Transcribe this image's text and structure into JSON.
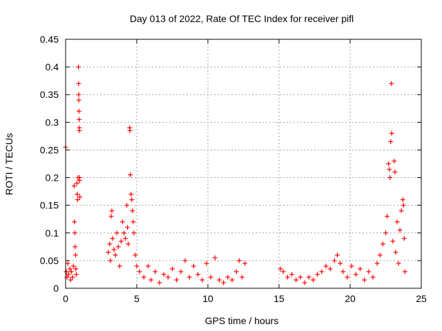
{
  "chart_data": {
    "type": "scatter",
    "title": "Day 013 of 2022, Rate Of TEC Index for receiver pifl",
    "xlabel": "GPS time / hours",
    "ylabel": "ROTI / TECUs",
    "xlim": [
      0,
      25
    ],
    "ylim": [
      0,
      0.45
    ],
    "xticks": [
      0,
      5,
      10,
      15,
      20,
      25
    ],
    "yticks": [
      0,
      0.05,
      0.1,
      0.15,
      0.2,
      0.25,
      0.3,
      0.35,
      0.4,
      0.45
    ],
    "xtick_labels": [
      "0",
      "5",
      "10",
      "15",
      "20",
      "25"
    ],
    "ytick_labels": [
      "0",
      "0.05",
      "0.1",
      "0.15",
      "0.2",
      "0.25",
      "0.3",
      "0.35",
      "0.4",
      "0.45"
    ],
    "grid": true,
    "marker": "+",
    "marker_color": "#ff0000",
    "series": [
      {
        "name": "ROTI",
        "points": [
          [
            0.0,
            0.255
          ],
          [
            0.05,
            0.03
          ],
          [
            0.1,
            0.02
          ],
          [
            0.15,
            0.045
          ],
          [
            0.2,
            0.025
          ],
          [
            0.3,
            0.035
          ],
          [
            0.35,
            0.015
          ],
          [
            0.4,
            0.03
          ],
          [
            0.5,
            0.02
          ],
          [
            0.55,
            0.04
          ],
          [
            0.6,
            0.185
          ],
          [
            0.62,
            0.12
          ],
          [
            0.65,
            0.1
          ],
          [
            0.67,
            0.075
          ],
          [
            0.7,
            0.06
          ],
          [
            0.72,
            0.035
          ],
          [
            0.75,
            0.025
          ],
          [
            0.8,
            0.19
          ],
          [
            0.82,
            0.17
          ],
          [
            0.85,
            0.16
          ],
          [
            0.87,
            0.2
          ],
          [
            0.9,
            0.4
          ],
          [
            0.91,
            0.37
          ],
          [
            0.92,
            0.35
          ],
          [
            0.93,
            0.34
          ],
          [
            0.94,
            0.32
          ],
          [
            0.95,
            0.305
          ],
          [
            0.96,
            0.29
          ],
          [
            0.97,
            0.285
          ],
          [
            0.98,
            0.2
          ],
          [
            0.99,
            0.195
          ],
          [
            1.0,
            0.165
          ],
          [
            3.0,
            0.065
          ],
          [
            3.1,
            0.08
          ],
          [
            3.15,
            0.05
          ],
          [
            3.2,
            0.13
          ],
          [
            3.25,
            0.14
          ],
          [
            3.3,
            0.09
          ],
          [
            3.4,
            0.07
          ],
          [
            3.5,
            0.06
          ],
          [
            3.6,
            0.1
          ],
          [
            3.7,
            0.075
          ],
          [
            3.8,
            0.04
          ],
          [
            3.9,
            0.085
          ],
          [
            4.0,
            0.12
          ],
          [
            4.1,
            0.1
          ],
          [
            4.2,
            0.09
          ],
          [
            4.3,
            0.15
          ],
          [
            4.35,
            0.11
          ],
          [
            4.4,
            0.08
          ],
          [
            4.5,
            0.29
          ],
          [
            4.52,
            0.285
          ],
          [
            4.55,
            0.205
          ],
          [
            4.6,
            0.17
          ],
          [
            4.65,
            0.16
          ],
          [
            4.7,
            0.14
          ],
          [
            4.75,
            0.12
          ],
          [
            4.8,
            0.1
          ],
          [
            4.9,
            0.06
          ],
          [
            5.0,
            0.04
          ],
          [
            5.2,
            0.03
          ],
          [
            5.5,
            0.02
          ],
          [
            5.8,
            0.04
          ],
          [
            6.0,
            0.015
          ],
          [
            6.3,
            0.03
          ],
          [
            6.6,
            0.01
          ],
          [
            6.9,
            0.025
          ],
          [
            7.2,
            0.02
          ],
          [
            7.5,
            0.035
          ],
          [
            7.8,
            0.015
          ],
          [
            8.1,
            0.03
          ],
          [
            8.4,
            0.05
          ],
          [
            8.7,
            0.02
          ],
          [
            9.0,
            0.04
          ],
          [
            9.3,
            0.025
          ],
          [
            9.6,
            0.015
          ],
          [
            9.9,
            0.045
          ],
          [
            10.2,
            0.02
          ],
          [
            10.5,
            0.055
          ],
          [
            10.8,
            0.015
          ],
          [
            11.1,
            0.01
          ],
          [
            11.4,
            0.02
          ],
          [
            11.7,
            0.015
          ],
          [
            12.0,
            0.03
          ],
          [
            12.2,
            0.05
          ],
          [
            12.4,
            0.02
          ],
          [
            12.6,
            0.045
          ],
          [
            15.1,
            0.035
          ],
          [
            15.3,
            0.03
          ],
          [
            15.6,
            0.02
          ],
          [
            15.9,
            0.025
          ],
          [
            16.2,
            0.015
          ],
          [
            16.5,
            0.02
          ],
          [
            16.8,
            0.01
          ],
          [
            17.1,
            0.02
          ],
          [
            17.4,
            0.015
          ],
          [
            17.7,
            0.025
          ],
          [
            18.0,
            0.03
          ],
          [
            18.3,
            0.04
          ],
          [
            18.6,
            0.035
          ],
          [
            18.9,
            0.05
          ],
          [
            19.1,
            0.06
          ],
          [
            19.3,
            0.045
          ],
          [
            19.5,
            0.03
          ],
          [
            19.8,
            0.02
          ],
          [
            20.1,
            0.04
          ],
          [
            20.4,
            0.025
          ],
          [
            20.7,
            0.035
          ],
          [
            21.0,
            0.015
          ],
          [
            21.3,
            0.03
          ],
          [
            21.6,
            0.02
          ],
          [
            21.9,
            0.045
          ],
          [
            22.1,
            0.06
          ],
          [
            22.3,
            0.08
          ],
          [
            22.5,
            0.1
          ],
          [
            22.6,
            0.13
          ],
          [
            22.7,
            0.225
          ],
          [
            22.75,
            0.215
          ],
          [
            22.8,
            0.2
          ],
          [
            22.85,
            0.265
          ],
          [
            22.9,
            0.37
          ],
          [
            22.92,
            0.28
          ],
          [
            23.0,
            0.085
          ],
          [
            23.1,
            0.23
          ],
          [
            23.15,
            0.21
          ],
          [
            23.2,
            0.065
          ],
          [
            23.3,
            0.12
          ],
          [
            23.4,
            0.045
          ],
          [
            23.5,
            0.105
          ],
          [
            23.6,
            0.14
          ],
          [
            23.7,
            0.16
          ],
          [
            23.75,
            0.15
          ],
          [
            23.8,
            0.09
          ],
          [
            23.85,
            0.03
          ]
        ]
      }
    ]
  }
}
